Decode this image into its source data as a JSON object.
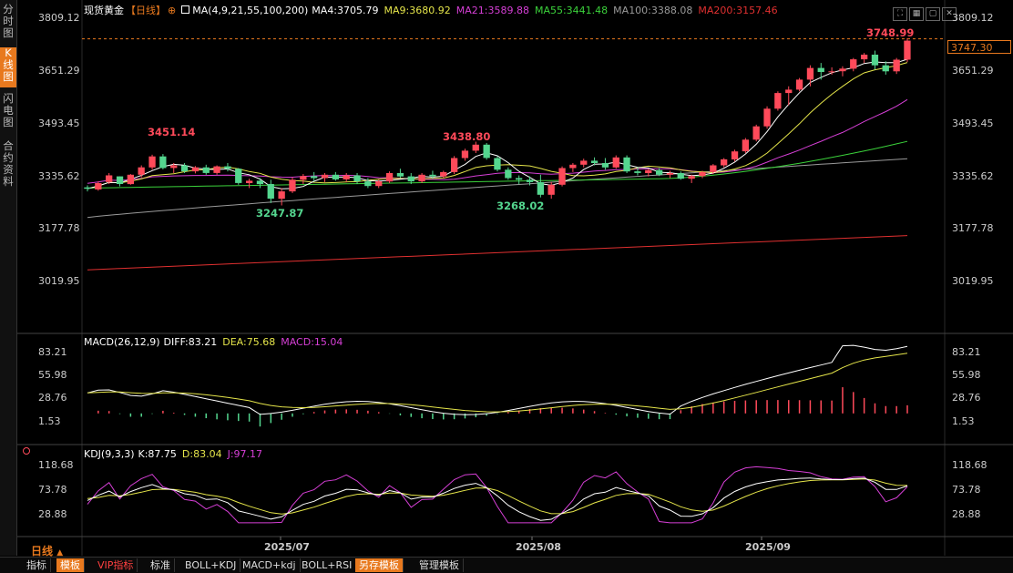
{
  "sidebar": {
    "items": [
      {
        "label": "分时图"
      },
      {
        "label": "K线图"
      },
      {
        "label": "闪电图"
      },
      {
        "label": "合约资料"
      }
    ]
  },
  "header": {
    "instrument": "现货黄金",
    "period_tag": "【日线】",
    "ma_prefix": "MA(4,9,21,55,100,200)",
    "ma4": "MA4:3705.79",
    "ma9": "MA9:3680.92",
    "ma21": "MA21:3589.88",
    "ma55": "MA55:3441.48",
    "ma100": "MA100:3388.08",
    "ma200": "MA200:3157.46"
  },
  "colors": {
    "up": "#ff4a5a",
    "down": "#54d68f",
    "ma4": "#ffffff",
    "ma9": "#e5e54a",
    "ma21": "#d63fd6",
    "ma55": "#3bd23b",
    "ma100": "#9a9a9a",
    "ma200": "#e03030",
    "accent": "#e8791e"
  },
  "price_axis": {
    "labels": [
      "3809.12",
      "3651.29",
      "3493.45",
      "3335.62",
      "3177.78",
      "3019.95"
    ]
  },
  "current_price": "3747.30",
  "annotations": {
    "high1": "3451.14",
    "high2": "3438.80",
    "low1": "3247.87",
    "low2": "3268.02",
    "high3": "3748.99"
  },
  "macd": {
    "label": "MACD(26,12,9)",
    "diff": "DIFF:83.21",
    "dea": "DEA:75.68",
    "macd": "MACD:15.04",
    "axis": [
      "83.21",
      "55.98",
      "28.76",
      "1.53"
    ]
  },
  "kdj": {
    "label": "KDJ(9,3,3)",
    "k": "K:87.75",
    "d": "D:83.04",
    "j": "J:97.17",
    "axis": [
      "118.68",
      "73.78",
      "28.88"
    ]
  },
  "x_axis": {
    "labels": [
      "2025/07",
      "2025/08",
      "2025/09"
    ]
  },
  "period_label": "日线",
  "toolbar": {
    "items": [
      "指标",
      "模板",
      "VIP指标",
      "标准",
      "BOLL+KDJ",
      "MACD+kdj",
      "BOLL+RSI",
      "另存模板",
      "管理模板"
    ]
  },
  "chart_data": {
    "type": "candlestick",
    "title": "现货黄金【日线】",
    "ylim": [
      3019.95,
      3809.12
    ],
    "candles": [
      [
        3302,
        3308,
        3290,
        3298
      ],
      [
        3296,
        3320,
        3292,
        3315
      ],
      [
        3318,
        3345,
        3312,
        3338
      ],
      [
        3335,
        3335,
        3305,
        3312
      ],
      [
        3312,
        3342,
        3310,
        3340
      ],
      [
        3340,
        3368,
        3332,
        3362
      ],
      [
        3362,
        3400,
        3355,
        3395
      ],
      [
        3395,
        3402,
        3356,
        3360
      ],
      [
        3360,
        3375,
        3345,
        3368
      ],
      [
        3368,
        3375,
        3345,
        3350
      ],
      [
        3350,
        3366,
        3344,
        3362
      ],
      [
        3362,
        3370,
        3340,
        3345
      ],
      [
        3345,
        3368,
        3340,
        3365
      ],
      [
        3365,
        3375,
        3350,
        3358
      ],
      [
        3358,
        3360,
        3310,
        3315
      ],
      [
        3315,
        3328,
        3300,
        3322
      ],
      [
        3322,
        3330,
        3300,
        3312
      ],
      [
        3312,
        3325,
        3255,
        3268
      ],
      [
        3268,
        3300,
        3248,
        3290
      ],
      [
        3290,
        3332,
        3285,
        3325
      ],
      [
        3325,
        3342,
        3312,
        3336
      ],
      [
        3336,
        3348,
        3320,
        3330
      ],
      [
        3330,
        3345,
        3318,
        3340
      ],
      [
        3340,
        3348,
        3322,
        3326
      ],
      [
        3326,
        3345,
        3318,
        3338
      ],
      [
        3338,
        3345,
        3312,
        3320
      ],
      [
        3320,
        3330,
        3300,
        3306
      ],
      [
        3306,
        3325,
        3300,
        3320
      ],
      [
        3320,
        3350,
        3315,
        3345
      ],
      [
        3345,
        3358,
        3330,
        3335
      ],
      [
        3335,
        3345,
        3312,
        3320
      ],
      [
        3320,
        3345,
        3315,
        3340
      ],
      [
        3340,
        3352,
        3328,
        3335
      ],
      [
        3335,
        3352,
        3330,
        3348
      ],
      [
        3348,
        3396,
        3342,
        3390
      ],
      [
        3390,
        3418,
        3382,
        3412
      ],
      [
        3412,
        3439,
        3405,
        3430
      ],
      [
        3430,
        3435,
        3385,
        3390
      ],
      [
        3390,
        3395,
        3350,
        3355
      ],
      [
        3355,
        3362,
        3325,
        3330
      ],
      [
        3330,
        3338,
        3312,
        3325
      ],
      [
        3325,
        3335,
        3308,
        3318
      ],
      [
        3318,
        3340,
        3272,
        3280
      ],
      [
        3280,
        3318,
        3268,
        3310
      ],
      [
        3310,
        3365,
        3305,
        3360
      ],
      [
        3360,
        3375,
        3348,
        3370
      ],
      [
        3370,
        3388,
        3362,
        3382
      ],
      [
        3382,
        3392,
        3368,
        3375
      ],
      [
        3375,
        3390,
        3355,
        3362
      ],
      [
        3362,
        3398,
        3358,
        3392
      ],
      [
        3392,
        3398,
        3345,
        3350
      ],
      [
        3350,
        3362,
        3338,
        3345
      ],
      [
        3345,
        3358,
        3335,
        3354
      ],
      [
        3354,
        3360,
        3336,
        3340
      ],
      [
        3340,
        3352,
        3330,
        3345
      ],
      [
        3345,
        3350,
        3325,
        3328
      ],
      [
        3328,
        3340,
        3315,
        3336
      ],
      [
        3336,
        3352,
        3330,
        3348
      ],
      [
        3348,
        3372,
        3342,
        3368
      ],
      [
        3368,
        3390,
        3362,
        3386
      ],
      [
        3386,
        3415,
        3380,
        3410
      ],
      [
        3410,
        3450,
        3405,
        3445
      ],
      [
        3445,
        3490,
        3440,
        3485
      ],
      [
        3485,
        3545,
        3478,
        3538
      ],
      [
        3538,
        3590,
        3532,
        3585
      ],
      [
        3585,
        3605,
        3548,
        3595
      ],
      [
        3595,
        3630,
        3590,
        3625
      ],
      [
        3625,
        3668,
        3605,
        3660
      ],
      [
        3660,
        3675,
        3625,
        3648
      ],
      [
        3648,
        3662,
        3640,
        3650
      ],
      [
        3650,
        3665,
        3635,
        3658
      ],
      [
        3658,
        3690,
        3650,
        3686
      ],
      [
        3686,
        3705,
        3675,
        3700
      ],
      [
        3700,
        3712,
        3655,
        3668
      ],
      [
        3668,
        3680,
        3640,
        3650
      ],
      [
        3650,
        3690,
        3642,
        3685
      ],
      [
        3685,
        3749,
        3678,
        3742
      ]
    ]
  }
}
